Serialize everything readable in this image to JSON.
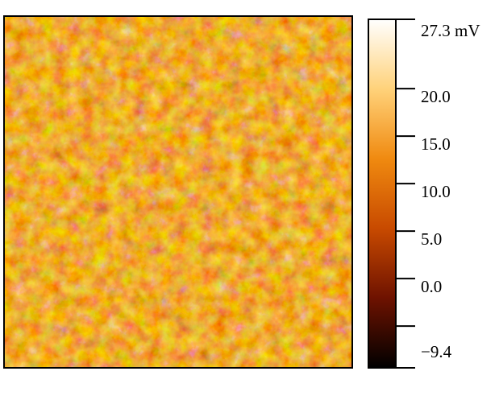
{
  "chart_data": {
    "type": "heatmap",
    "colormap": [
      "#000000",
      "#6e1200",
      "#c84a00",
      "#f08a10",
      "#ffd27a",
      "#ffffff"
    ],
    "zlim": [
      -9.4,
      27.3
    ],
    "zticks": [
      {
        "value": 27.3,
        "label": "27.3 mV"
      },
      {
        "value": 20,
        "label": "20.0"
      },
      {
        "value": 15,
        "label": "15.0"
      },
      {
        "value": 10,
        "label": "10.0"
      },
      {
        "value": 5,
        "label": "5.0"
      },
      {
        "value": 0,
        "label": "0.0"
      },
      {
        "value": -5,
        "label": null
      },
      {
        "value": -9.4,
        "label": "−9.4"
      }
    ]
  }
}
